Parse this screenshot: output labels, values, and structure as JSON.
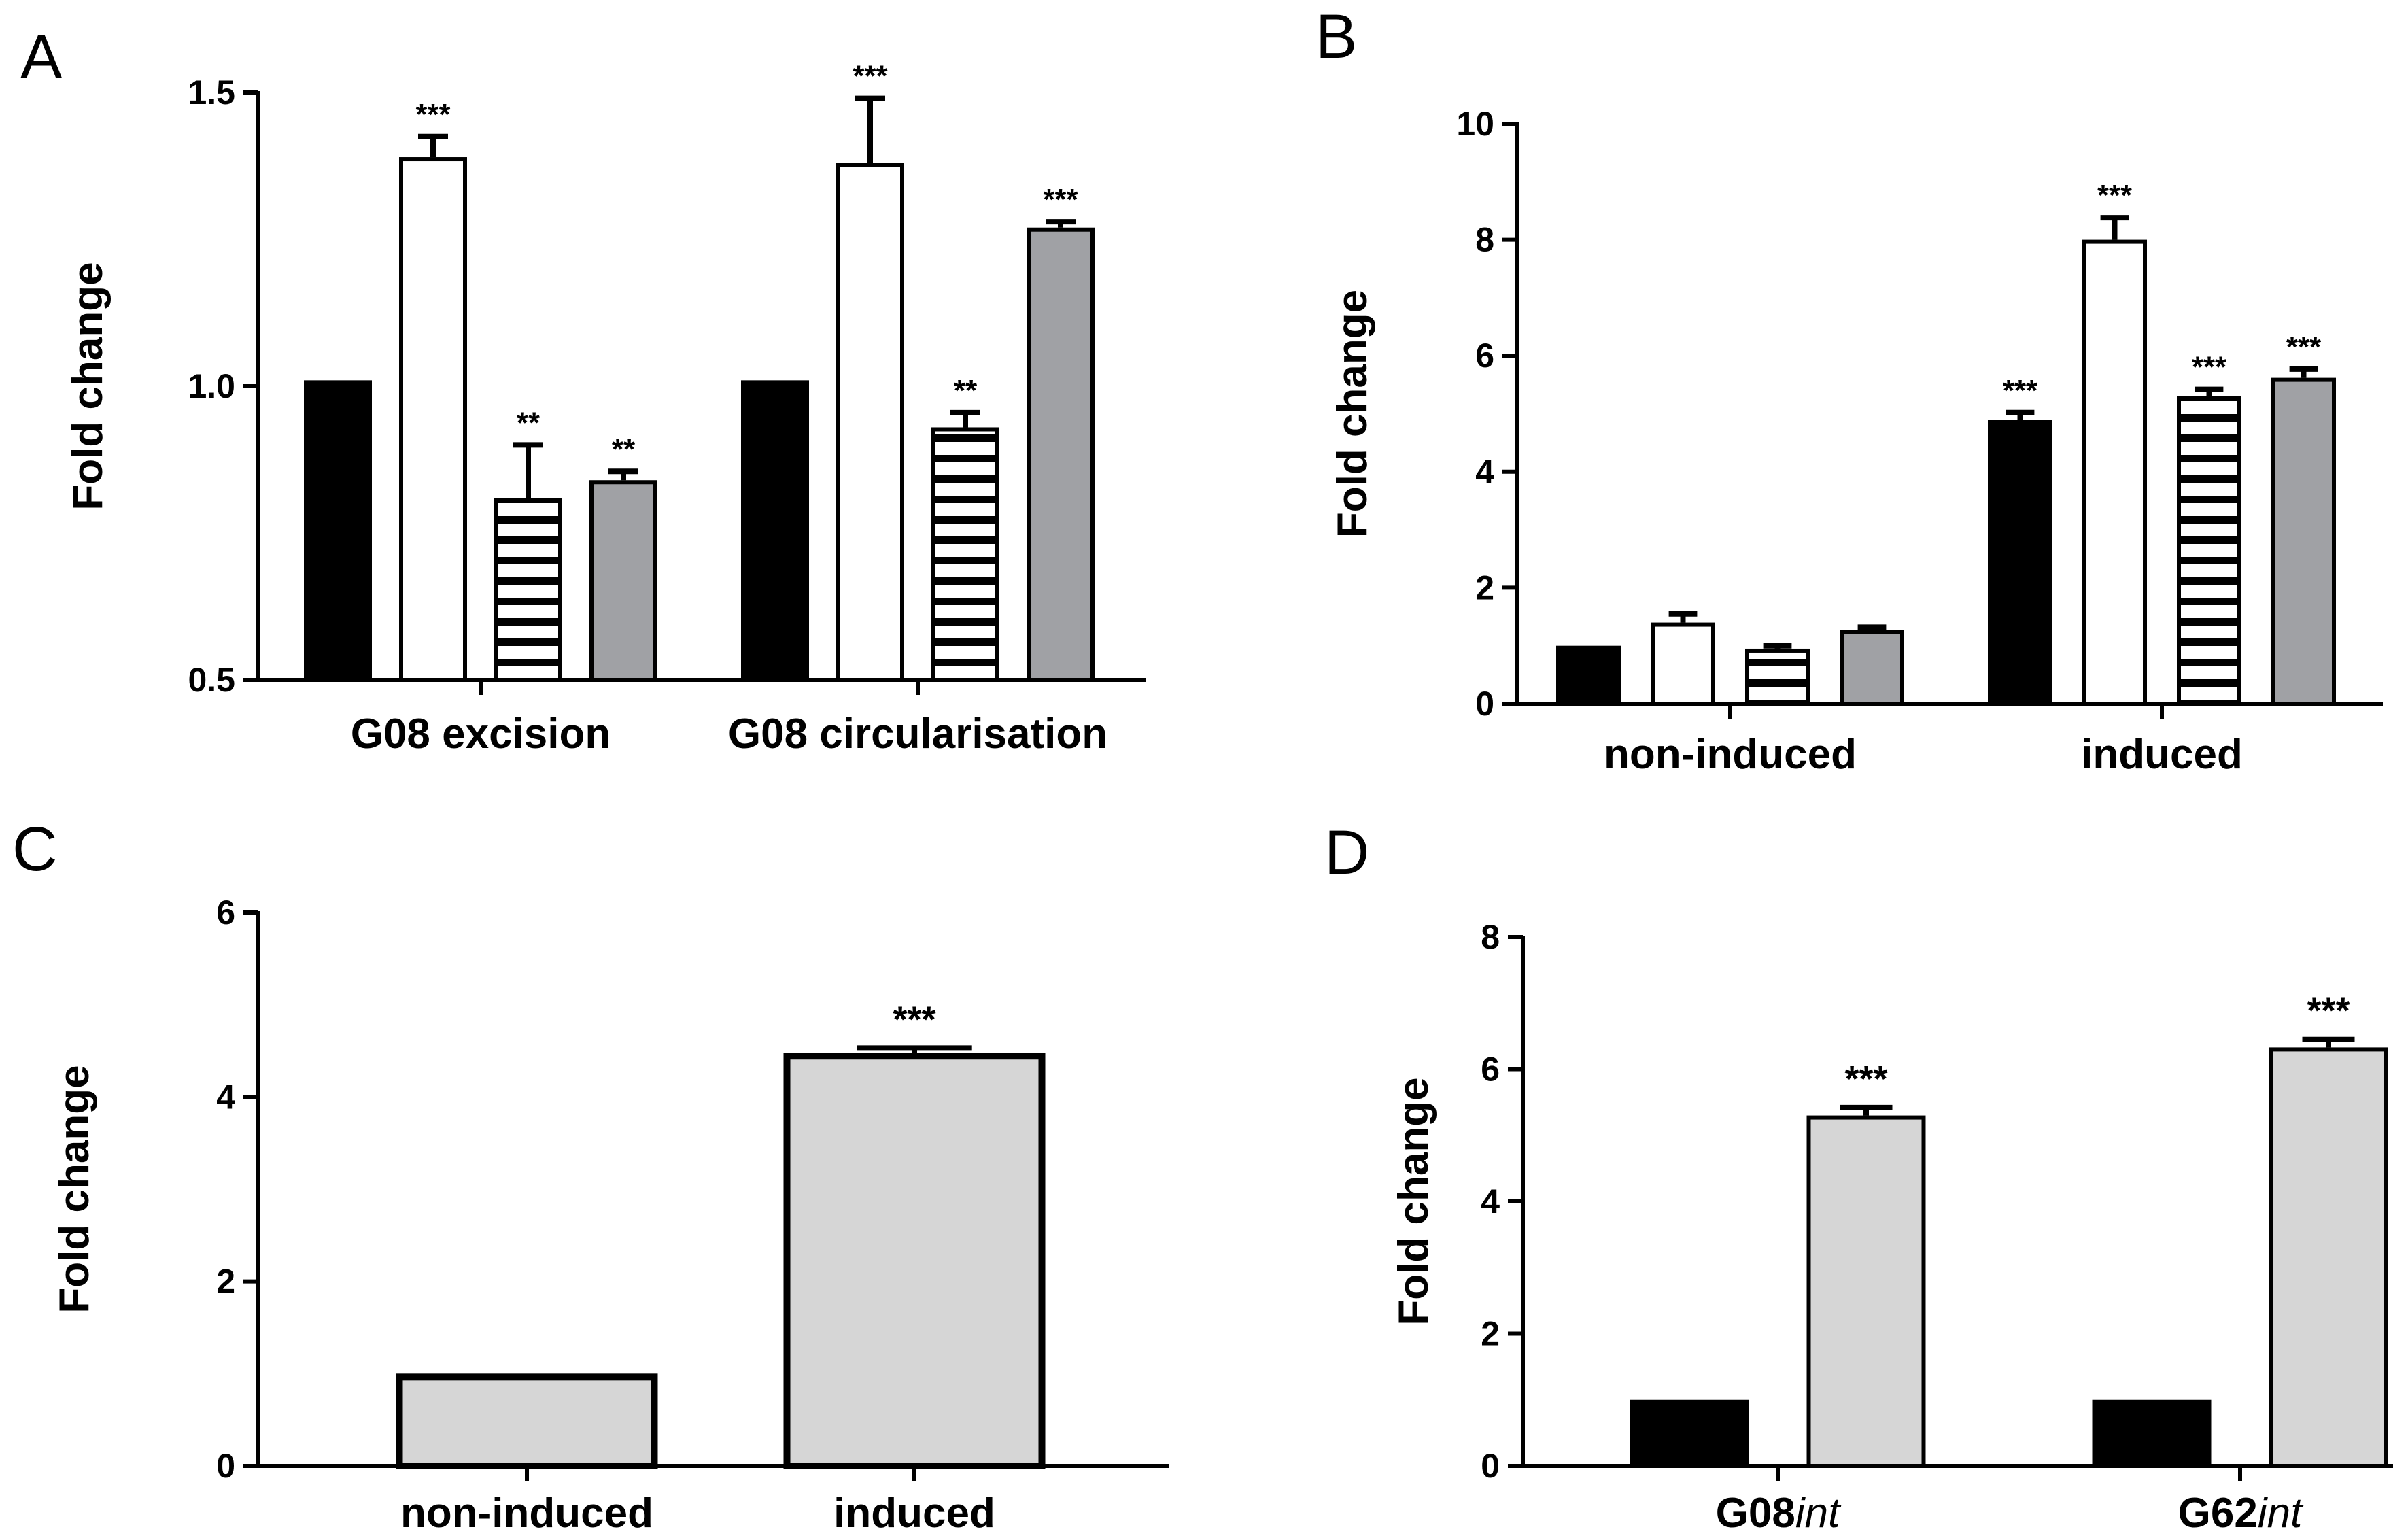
{
  "colors": {
    "black": "#000000",
    "white": "#ffffff",
    "gray": "#a0a1a5",
    "light_gray": "#d6d6d6"
  },
  "chart_data": [
    {
      "panel": "A",
      "type": "bar",
      "ylabel": "Fold change",
      "ylim": [
        0.5,
        1.5
      ],
      "yticks": [
        0.5,
        1.0,
        1.5
      ],
      "ytick_labels": [
        "0.5",
        "1.0",
        "1.5"
      ],
      "categories": [
        "G08 excision",
        "G08 circularisation"
      ],
      "series": [
        {
          "name": "black",
          "fill": "solid-black",
          "values": [
            1.01,
            1.01
          ],
          "errors": [
            0.0,
            0.0
          ],
          "sig": [
            "",
            ""
          ]
        },
        {
          "name": "white",
          "fill": "white",
          "values": [
            1.39,
            1.38
          ],
          "errors": [
            0.035,
            0.11
          ],
          "sig": [
            "***",
            "***"
          ]
        },
        {
          "name": "striped",
          "fill": "horizontal-stripes",
          "values": [
            0.81,
            0.93
          ],
          "errors": [
            0.09,
            0.025
          ],
          "sig": [
            "**",
            "**"
          ]
        },
        {
          "name": "gray",
          "fill": "gray",
          "values": [
            0.84,
            1.27
          ],
          "errors": [
            0.015,
            0.01
          ],
          "sig": [
            "**",
            "***"
          ]
        }
      ]
    },
    {
      "panel": "B",
      "type": "bar",
      "ylabel": "Fold change",
      "ylim": [
        0,
        10
      ],
      "yticks": [
        0,
        2,
        4,
        6,
        8,
        10
      ],
      "ytick_labels": [
        "0",
        "2",
        "4",
        "6",
        "8",
        "10"
      ],
      "categories": [
        "non-induced",
        "induced"
      ],
      "series": [
        {
          "name": "black",
          "fill": "solid-black",
          "values": [
            1.0,
            4.9
          ],
          "errors": [
            0.0,
            0.12
          ],
          "sig": [
            "",
            "***"
          ]
        },
        {
          "name": "white",
          "fill": "white",
          "values": [
            1.4,
            8.0
          ],
          "errors": [
            0.15,
            0.38
          ],
          "sig": [
            "",
            "***"
          ]
        },
        {
          "name": "striped",
          "fill": "horizontal-stripes",
          "values": [
            0.95,
            5.3
          ],
          "errors": [
            0.05,
            0.12
          ],
          "sig": [
            "",
            "***"
          ]
        },
        {
          "name": "gray",
          "fill": "gray",
          "values": [
            1.27,
            5.62
          ],
          "errors": [
            0.05,
            0.15
          ],
          "sig": [
            "",
            "***"
          ]
        }
      ]
    },
    {
      "panel": "C",
      "type": "bar",
      "ylabel": "Fold change",
      "ylim": [
        0,
        6
      ],
      "yticks": [
        0,
        2,
        4,
        6
      ],
      "ytick_labels": [
        "0",
        "2",
        "4",
        "6"
      ],
      "categories": [
        "non-induced",
        "induced"
      ],
      "series": [
        {
          "name": "light-gray",
          "fill": "light-gray",
          "values": [
            1.0,
            4.48
          ],
          "errors": [
            0.0,
            0.05
          ],
          "sig": [
            "",
            "***"
          ]
        }
      ]
    },
    {
      "panel": "D",
      "type": "bar",
      "ylabel": "Fold change",
      "ylim": [
        0,
        8
      ],
      "yticks": [
        0,
        2,
        4,
        6,
        8
      ],
      "ytick_labels": [
        "0",
        "2",
        "4",
        "6",
        "8"
      ],
      "categories": [
        {
          "prefix": "G08",
          "suffix": "int"
        },
        {
          "prefix": "G62",
          "suffix": "int"
        }
      ],
      "series": [
        {
          "name": "black",
          "fill": "solid-black",
          "values": [
            1.0,
            1.0
          ],
          "errors": [
            0.0,
            0.0
          ],
          "sig": [
            "",
            ""
          ]
        },
        {
          "name": "light-gray",
          "fill": "light-gray",
          "values": [
            5.3,
            6.33
          ],
          "errors": [
            0.12,
            0.12
          ],
          "sig": [
            "***",
            "***"
          ]
        }
      ]
    }
  ]
}
